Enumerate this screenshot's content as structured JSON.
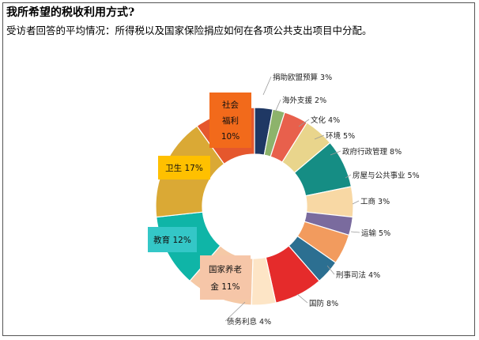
{
  "header": {
    "title": "我所希望的税收利用方式?",
    "subtitle": "受访者回答的平均情况：所得税以及国家保险捐应如何在各项公共支出项目中分配。"
  },
  "chart_data": {
    "type": "pie",
    "variant": "donut",
    "title": "我所希望的税收利用方式?",
    "subtitle": "受访者回答的平均情况：所得税以及国家保险捐应如何在各项公共支出项目中分配。",
    "slices": [
      {
        "label": "捐助欧盟预算",
        "value": 3,
        "color": "#1f3864"
      },
      {
        "label": "海外支援",
        "value": 2,
        "color": "#8db36b"
      },
      {
        "label": "文化",
        "value": 4,
        "color": "#e8604c"
      },
      {
        "label": "环境",
        "value": 5,
        "color": "#e9d58c"
      },
      {
        "label": "政府行政管理",
        "value": 8,
        "color": "#158d84"
      },
      {
        "label": "房屋与公共事业",
        "value": 5,
        "color": "#f8d8a4"
      },
      {
        "label": "工商",
        "value": 3,
        "color": "#7a6b9e"
      },
      {
        "label": "运输",
        "value": 5,
        "color": "#f29b5e"
      },
      {
        "label": "刑事司法",
        "value": 4,
        "color": "#2c6f91"
      },
      {
        "label": "国防",
        "value": 8,
        "color": "#e52b2b"
      },
      {
        "label": "债务利息",
        "value": 4,
        "color": "#fde5c6"
      },
      {
        "label": "国家养老金",
        "value": 11,
        "color": "#f5c9a6"
      },
      {
        "label": "教育",
        "value": 12,
        "color": "#0fb5a7"
      },
      {
        "label": "卫生",
        "value": 17,
        "color": "#daa935"
      },
      {
        "label": "社会福利",
        "value": 10,
        "color": "#e5572d"
      }
    ],
    "labels_outside": [
      {
        "text": "捐助欧盟预算 3%"
      },
      {
        "text": "海外支援 2%"
      },
      {
        "text": "文化 4%"
      },
      {
        "text": "环境 5%"
      },
      {
        "text": "政府行政管理 8%"
      },
      {
        "text": "房屋与公共事业 5%"
      },
      {
        "text": "工商 3%"
      },
      {
        "text": "运输 5%"
      },
      {
        "text": "刑事司法 4%"
      },
      {
        "text": "国防 8%"
      },
      {
        "text": "债务利息 4%"
      }
    ],
    "labels_boxed": [
      {
        "lines": [
          "社会",
          "福利",
          "10%"
        ],
        "color": "#f26a1b"
      },
      {
        "lines": [
          "卫生 17%"
        ],
        "color": "#ffc000"
      },
      {
        "lines": [
          "教育 12%"
        ],
        "color": "#34c7c7"
      },
      {
        "lines": [
          "国家养老",
          "金 11%"
        ],
        "color": "#f6c6a8"
      }
    ]
  }
}
